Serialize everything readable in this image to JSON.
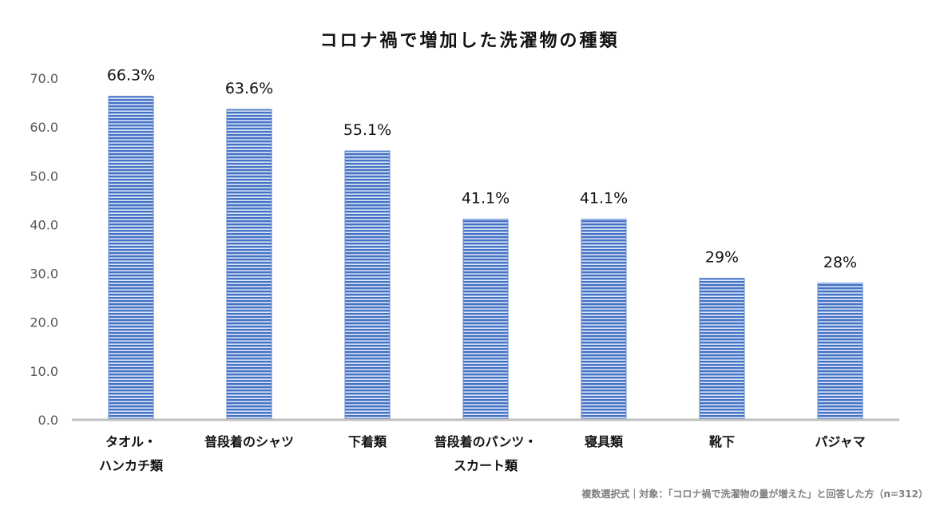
{
  "chart_data": {
    "type": "bar",
    "title": "コロナ禍で増加した洗濯物の種類",
    "categories": [
      [
        "タオル・",
        "ハンカチ類"
      ],
      [
        "普段着のシャツ"
      ],
      [
        "下着類"
      ],
      [
        "普段着のパンツ・",
        "スカート類"
      ],
      [
        "寝具類"
      ],
      [
        "靴下"
      ],
      [
        "パジャマ"
      ]
    ],
    "values": [
      66.3,
      63.6,
      55.1,
      41.1,
      41.1,
      29,
      28
    ],
    "data_labels": [
      "66.3%",
      "63.6%",
      "55.1%",
      "41.1%",
      "41.1%",
      "29%",
      "28%"
    ],
    "ylim": [
      0,
      70
    ],
    "yticks": [
      "0.0",
      "10.0",
      "20.0",
      "30.0",
      "40.0",
      "50.0",
      "60.0",
      "70.0"
    ],
    "grid": false,
    "bar_color": "#4472c4",
    "footnote": "複数選択式｜対象：「コロナ禍で洗濯物の量が増えた」と回答した方（n=312）"
  }
}
